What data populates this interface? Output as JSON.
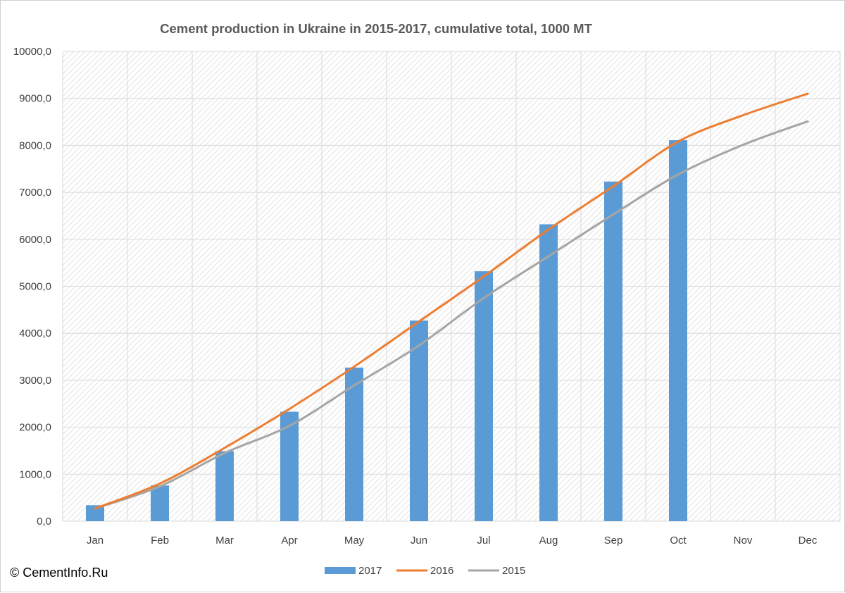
{
  "copyright": "© CementInfo.Ru",
  "colors": {
    "s2017": "#5b9bd5",
    "s2016": "#ed7d31",
    "s2015": "#a5a5a5",
    "grid": "#d9d9d9",
    "hatch": "#e3e3e3"
  },
  "chart_data": {
    "type": "bar",
    "title": "Cement production in Ukraine in 2015-2017, cumulative total, 1000 MT",
    "xlabel": "",
    "ylabel": "",
    "categories": [
      "Jan",
      "Feb",
      "Mar",
      "Apr",
      "May",
      "Jun",
      "Jul",
      "Aug",
      "Sep",
      "Oct",
      "Nov",
      "Dec"
    ],
    "ylim": [
      0,
      10000
    ],
    "y_ticks": [
      0,
      1000,
      2000,
      3000,
      4000,
      5000,
      6000,
      7000,
      8000,
      9000,
      10000
    ],
    "y_tick_labels": [
      "0,0",
      "1000,0",
      "2000,0",
      "3000,0",
      "4000,0",
      "5000,0",
      "6000,0",
      "7000,0",
      "8000,0",
      "9000,0",
      "10000,0"
    ],
    "grid": true,
    "legend_position": "bottom",
    "series": [
      {
        "name": "2017",
        "type": "bar",
        "color": "#5b9bd5",
        "values": [
          340,
          760,
          1490,
          2330,
          3270,
          4270,
          5320,
          6320,
          7230,
          8110,
          null,
          null
        ]
      },
      {
        "name": "2016",
        "type": "line",
        "color": "#ed7d31",
        "values": [
          270,
          800,
          1560,
          2390,
          3290,
          4250,
          5210,
          6210,
          7130,
          8080,
          8640,
          9100
        ]
      },
      {
        "name": "2015",
        "type": "line",
        "color": "#a5a5a5",
        "values": [
          270,
          740,
          1450,
          2030,
          2890,
          3740,
          4750,
          5640,
          6530,
          7380,
          8010,
          8510
        ]
      }
    ]
  }
}
